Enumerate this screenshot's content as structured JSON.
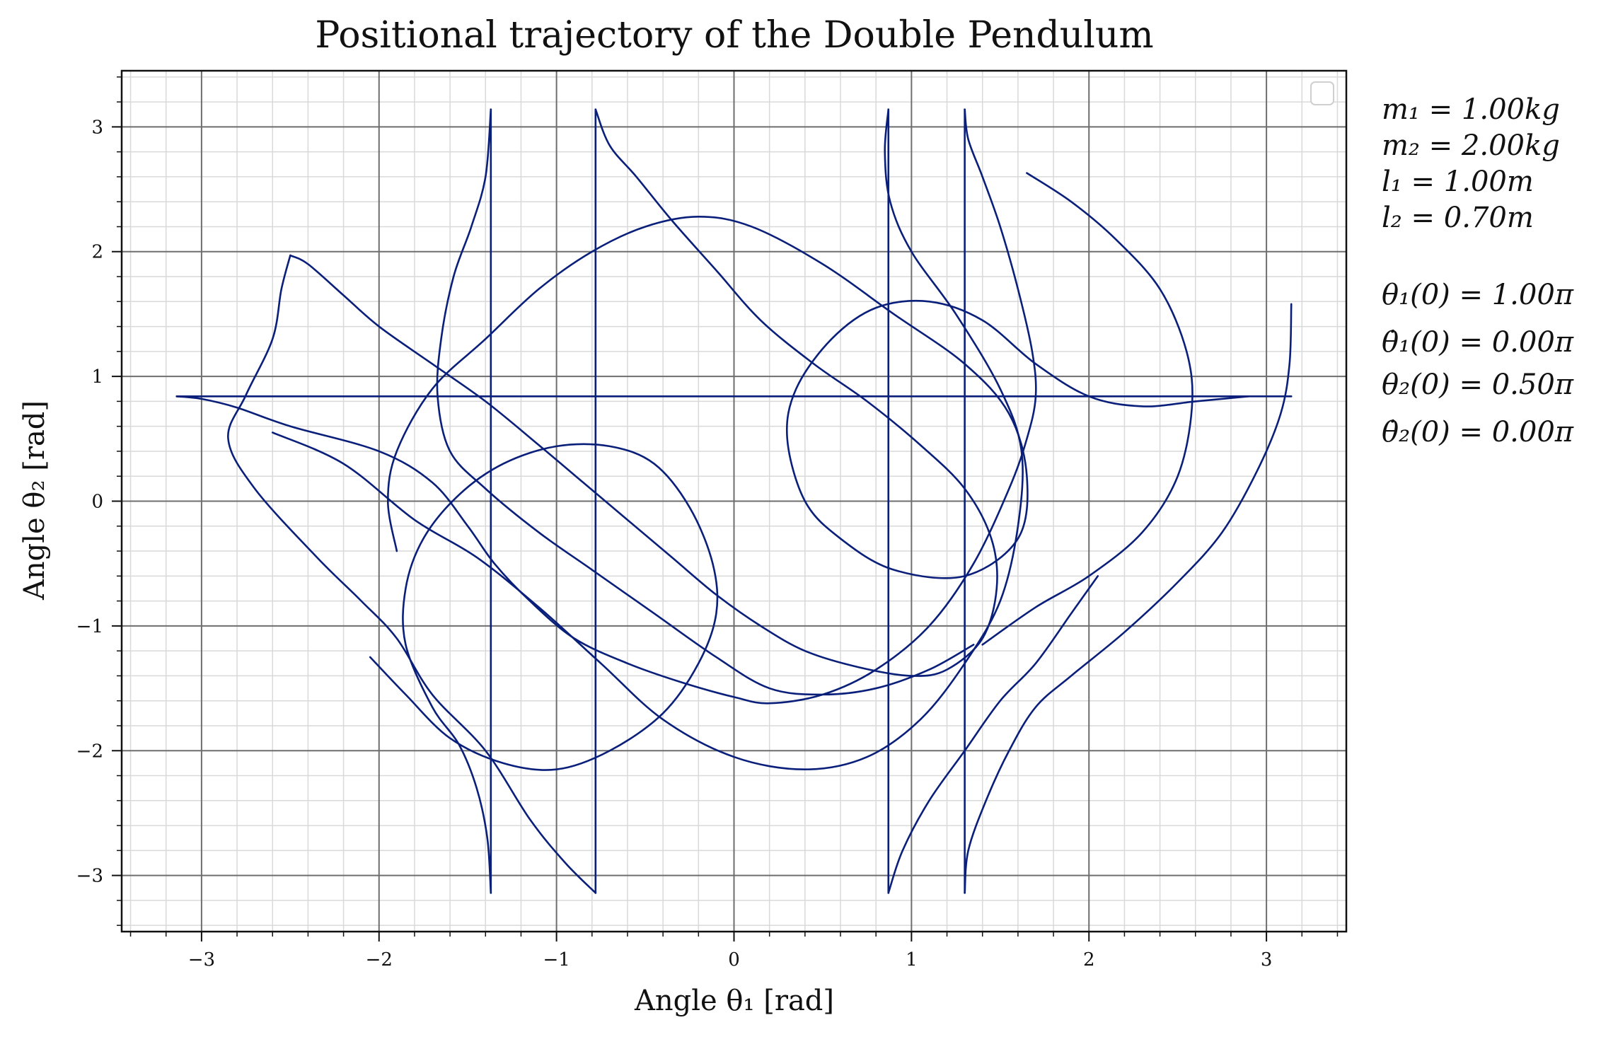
{
  "chart_data": {
    "type": "line",
    "title": "Positional trajectory of the Double Pendulum",
    "xlabel": "Angle θ₁ [rad]",
    "ylabel": "Angle θ₂ [rad]",
    "xlim": [
      -3.45,
      3.45
    ],
    "ylim": [
      -3.45,
      3.45
    ],
    "xticks": [
      -3,
      -2,
      -1,
      0,
      1,
      2,
      3
    ],
    "yticks": [
      -3,
      -2,
      -1,
      0,
      1,
      2,
      3
    ],
    "xtick_labels": [
      "−3",
      "−2",
      "−1",
      "0",
      "1",
      "2",
      "3"
    ],
    "ytick_labels": [
      "−3",
      "−2",
      "−1",
      "0",
      "1",
      "2",
      "3"
    ],
    "grid": "major and minor",
    "legend": "top-right (empty)",
    "line_color": "#0a1f7a",
    "parameters": [
      {
        "text": "m₁ = 1.00kg"
      },
      {
        "text": "m₂ = 2.00kg"
      },
      {
        "text": "l₁ = 1.00m"
      },
      {
        "text": "l₂ = 0.70m"
      },
      {
        "text": ""
      },
      {
        "text": "θ₁(0) = 1.00π"
      },
      {
        "text": "θ̇₁(0) = 0.00π"
      },
      {
        "text": "θ₂(0) = 0.50π"
      },
      {
        "text": "θ̇₂(0) = 0.00π"
      }
    ],
    "series": [
      {
        "segments": [
          [
            [
              -3.14,
              0.84
            ],
            [
              3.14,
              0.84
            ]
          ],
          [
            [
              -3.14,
              0.84
            ],
            [
              -3.0,
              0.82
            ],
            [
              -2.8,
              0.75
            ],
            [
              -2.5,
              0.6
            ],
            [
              -2.0,
              0.4
            ],
            [
              -1.7,
              0.15
            ],
            [
              -1.5,
              -0.2
            ],
            [
              -1.35,
              -0.5
            ],
            [
              -1.15,
              -0.8
            ],
            [
              -0.9,
              -1.1
            ],
            [
              -0.6,
              -1.3
            ],
            [
              -0.3,
              -1.45
            ],
            [
              0.0,
              -1.57
            ],
            [
              0.2,
              -1.62
            ],
            [
              0.5,
              -1.55
            ],
            [
              0.8,
              -1.35
            ],
            [
              1.1,
              -1.0
            ],
            [
              1.35,
              -0.5
            ],
            [
              1.55,
              0.1
            ],
            [
              1.65,
              0.5
            ],
            [
              1.7,
              0.84
            ],
            [
              1.68,
              1.2
            ],
            [
              1.6,
              1.7
            ],
            [
              1.5,
              2.2
            ],
            [
              1.4,
              2.6
            ],
            [
              1.32,
              2.9
            ],
            [
              1.3,
              3.14
            ]
          ],
          [
            [
              1.3,
              3.14
            ],
            [
              1.3,
              -3.14
            ]
          ],
          [
            [
              1.3,
              -3.14
            ],
            [
              1.32,
              -2.8
            ],
            [
              1.42,
              -2.4
            ],
            [
              1.55,
              -2.0
            ],
            [
              1.7,
              -1.65
            ],
            [
              1.9,
              -1.4
            ],
            [
              2.2,
              -1.05
            ],
            [
              2.5,
              -0.65
            ],
            [
              2.75,
              -0.25
            ],
            [
              2.95,
              0.25
            ],
            [
              3.08,
              0.7
            ],
            [
              3.13,
              1.1
            ],
            [
              3.14,
              1.58
            ]
          ]
        ]
      },
      {
        "segments": [
          [
            [
              -2.5,
              1.97
            ],
            [
              -2.4,
              1.9
            ],
            [
              -2.2,
              1.65
            ],
            [
              -2.0,
              1.4
            ],
            [
              -1.7,
              1.1
            ],
            [
              -1.4,
              0.8
            ],
            [
              -1.1,
              0.45
            ],
            [
              -0.85,
              0.15
            ],
            [
              -0.6,
              -0.15
            ],
            [
              -0.35,
              -0.45
            ],
            [
              -0.1,
              -0.75
            ],
            [
              0.15,
              -1.0
            ],
            [
              0.4,
              -1.2
            ],
            [
              0.7,
              -1.33
            ],
            [
              1.0,
              -1.4
            ],
            [
              1.2,
              -1.35
            ],
            [
              1.4,
              -1.1
            ],
            [
              1.48,
              -0.7
            ],
            [
              1.45,
              -0.3
            ],
            [
              1.3,
              0.1
            ],
            [
              1.05,
              0.45
            ],
            [
              0.75,
              0.8
            ],
            [
              0.45,
              1.1
            ],
            [
              0.15,
              1.45
            ],
            [
              -0.1,
              1.85
            ],
            [
              -0.35,
              2.25
            ],
            [
              -0.55,
              2.6
            ],
            [
              -0.7,
              2.85
            ],
            [
              -0.78,
              3.14
            ]
          ],
          [
            [
              -0.78,
              3.14
            ],
            [
              -0.78,
              -3.14
            ]
          ],
          [
            [
              -0.78,
              -3.14
            ],
            [
              -0.95,
              -2.9
            ],
            [
              -1.15,
              -2.55
            ],
            [
              -1.4,
              -2.0
            ],
            [
              -1.7,
              -1.55
            ],
            [
              -1.9,
              -1.1
            ],
            [
              -2.1,
              -0.8
            ],
            [
              -2.35,
              -0.45
            ],
            [
              -2.7,
              0.1
            ],
            [
              -2.85,
              0.5
            ],
            [
              -2.75,
              0.85
            ],
            [
              -2.6,
              1.3
            ],
            [
              -2.55,
              1.7
            ],
            [
              -2.5,
              1.97
            ]
          ]
        ]
      },
      {
        "segments": [
          [
            [
              -1.37,
              -3.14
            ],
            [
              -1.39,
              -2.7
            ],
            [
              -1.45,
              -2.3
            ],
            [
              -1.55,
              -1.95
            ],
            [
              -1.7,
              -1.65
            ],
            [
              -1.85,
              -1.15
            ],
            [
              -1.85,
              -0.7
            ],
            [
              -1.75,
              -0.3
            ],
            [
              -1.55,
              0.05
            ],
            [
              -1.3,
              0.3
            ],
            [
              -1.0,
              0.44
            ],
            [
              -0.7,
              0.44
            ],
            [
              -0.45,
              0.3
            ],
            [
              -0.25,
              -0.05
            ],
            [
              -0.12,
              -0.5
            ],
            [
              -0.1,
              -0.9
            ],
            [
              -0.2,
              -1.3
            ],
            [
              -0.4,
              -1.7
            ],
            [
              -0.7,
              -2.0
            ],
            [
              -1.0,
              -2.15
            ],
            [
              -1.3,
              -2.1
            ],
            [
              -1.6,
              -1.9
            ],
            [
              -1.85,
              -1.55
            ],
            [
              -2.05,
              -1.25
            ]
          ],
          [
            [
              -1.37,
              -3.14
            ],
            [
              -1.37,
              3.14
            ]
          ],
          [
            [
              -1.37,
              3.14
            ],
            [
              -1.4,
              2.6
            ],
            [
              -1.48,
              2.2
            ],
            [
              -1.58,
              1.8
            ],
            [
              -1.65,
              1.3
            ],
            [
              -1.67,
              0.84
            ],
            [
              -1.6,
              0.4
            ],
            [
              -1.4,
              0.1
            ],
            [
              -1.1,
              -0.25
            ],
            [
              -0.8,
              -0.55
            ],
            [
              -0.45,
              -0.9
            ],
            [
              -0.1,
              -1.25
            ],
            [
              0.2,
              -1.5
            ],
            [
              0.5,
              -1.55
            ],
            [
              0.8,
              -1.5
            ],
            [
              1.1,
              -1.35
            ],
            [
              1.35,
              -1.15
            ]
          ]
        ]
      },
      {
        "segments": [
          [
            [
              0.87,
              3.14
            ],
            [
              0.85,
              2.8
            ],
            [
              0.88,
              2.4
            ],
            [
              1.0,
              2.0
            ],
            [
              1.25,
              1.5
            ],
            [
              1.5,
              0.9
            ],
            [
              1.62,
              0.4
            ],
            [
              1.6,
              -0.2
            ],
            [
              1.5,
              -0.8
            ],
            [
              1.3,
              -1.3
            ],
            [
              1.05,
              -1.75
            ],
            [
              0.75,
              -2.05
            ],
            [
              0.4,
              -2.15
            ],
            [
              0.0,
              -2.05
            ],
            [
              -0.4,
              -1.75
            ],
            [
              -0.75,
              -1.3
            ],
            [
              -1.1,
              -0.85
            ],
            [
              -1.45,
              -0.45
            ],
            [
              -1.8,
              -0.15
            ],
            [
              -2.2,
              0.3
            ],
            [
              -2.6,
              0.55
            ]
          ],
          [
            [
              0.87,
              3.14
            ],
            [
              0.87,
              -3.14
            ]
          ],
          [
            [
              0.87,
              -3.14
            ],
            [
              0.95,
              -2.8
            ],
            [
              1.1,
              -2.4
            ],
            [
              1.3,
              -2.0
            ],
            [
              1.5,
              -1.6
            ],
            [
              1.7,
              -1.3
            ],
            [
              1.9,
              -0.9
            ],
            [
              2.05,
              -0.6
            ]
          ],
          [
            [
              1.65,
              2.63
            ],
            [
              1.9,
              2.4
            ],
            [
              2.15,
              2.1
            ],
            [
              2.4,
              1.7
            ],
            [
              2.55,
              1.2
            ],
            [
              2.58,
              0.75
            ],
            [
              2.5,
              0.2
            ],
            [
              2.3,
              -0.25
            ],
            [
              2.0,
              -0.6
            ],
            [
              1.7,
              -0.85
            ],
            [
              1.4,
              -1.15
            ]
          ]
        ]
      },
      {
        "segments": [
          [
            [
              -1.9,
              -0.4
            ],
            [
              -1.95,
              0.0
            ],
            [
              -1.9,
              0.4
            ],
            [
              -1.7,
              0.9
            ],
            [
              -1.4,
              1.3
            ],
            [
              -1.1,
              1.7
            ],
            [
              -0.8,
              2.0
            ],
            [
              -0.5,
              2.2
            ],
            [
              -0.2,
              2.28
            ],
            [
              0.1,
              2.2
            ],
            [
              0.5,
              1.9
            ],
            [
              0.9,
              1.5
            ],
            [
              1.3,
              1.1
            ],
            [
              1.55,
              0.7
            ],
            [
              1.65,
              0.2
            ],
            [
              1.6,
              -0.3
            ],
            [
              1.3,
              -0.6
            ],
            [
              0.9,
              -0.55
            ],
            [
              0.6,
              -0.3
            ],
            [
              0.4,
              0.0
            ],
            [
              0.3,
              0.5
            ],
            [
              0.35,
              0.9
            ],
            [
              0.55,
              1.3
            ],
            [
              0.8,
              1.55
            ],
            [
              1.1,
              1.6
            ],
            [
              1.4,
              1.45
            ],
            [
              1.7,
              1.1
            ],
            [
              2.0,
              0.84
            ],
            [
              2.3,
              0.76
            ],
            [
              2.6,
              0.8
            ],
            [
              2.9,
              0.84
            ]
          ]
        ]
      }
    ]
  }
}
